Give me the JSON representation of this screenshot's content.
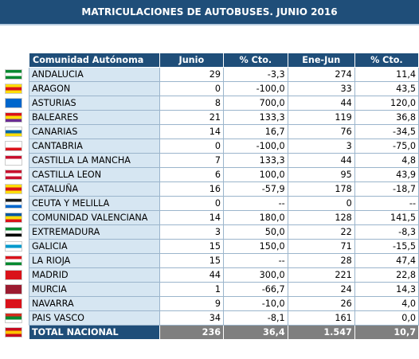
{
  "title": "MATRICULACIONES DE AUTOBUSES. JUNIO 2016",
  "headers": [
    "Comunidad Autónoma",
    "Junio",
    "% Cto.",
    "Ene-Jun",
    "% Cto."
  ],
  "rows": [
    {
      "name": "ANDALUCIA",
      "junio": "29",
      "cto1": "-3,3",
      "enejun": "274",
      "cto2": "11,4",
      "flag_colors": [
        "#078930",
        "#ffffff",
        "#078930"
      ]
    },
    {
      "name": "ARAGON",
      "junio": "0",
      "cto1": "-100,0",
      "enejun": "33",
      "cto2": "43,5",
      "flag_colors": [
        "#fcdd09",
        "#da121a",
        "#fcdd09"
      ]
    },
    {
      "name": "ASTURIAS",
      "junio": "8",
      "cto1": "700,0",
      "enejun": "44",
      "cto2": "120,0",
      "flag_colors": [
        "#0066cc",
        "#0066cc",
        "#0066cc"
      ]
    },
    {
      "name": "BALEARES",
      "junio": "21",
      "cto1": "133,3",
      "enejun": "119",
      "cto2": "36,8",
      "flag_colors": [
        "#da121a",
        "#fcdd09",
        "#6a2c91"
      ]
    },
    {
      "name": "CANARIAS",
      "junio": "14",
      "cto1": "16,7",
      "enejun": "76",
      "cto2": "-34,5",
      "flag_colors": [
        "#ffffff",
        "#0768a9",
        "#fcdd09"
      ]
    },
    {
      "name": "CANTABRIA",
      "junio": "0",
      "cto1": "-100,0",
      "enejun": "3",
      "cto2": "-75,0",
      "flag_colors": [
        "#ffffff",
        "#ffffff",
        "#da121a"
      ]
    },
    {
      "name": "CASTILLA LA MANCHA",
      "junio": "7",
      "cto1": "133,3",
      "enejun": "44",
      "cto2": "4,8",
      "flag_colors": [
        "#c8102e",
        "#ffffff",
        "#ffffff"
      ]
    },
    {
      "name": "CASTILLA LEON",
      "junio": "6",
      "cto1": "100,0",
      "enejun": "95",
      "cto2": "43,9",
      "flag_colors": [
        "#c8102e",
        "#ffffff",
        "#c8102e"
      ]
    },
    {
      "name": "CATALUÑA",
      "junio": "16",
      "cto1": "-57,9",
      "enejun": "178",
      "cto2": "-18,7",
      "flag_colors": [
        "#fcdd09",
        "#da121a",
        "#fcdd09"
      ]
    },
    {
      "name": "CEUTA Y MELILLA",
      "junio": "0",
      "cto1": "--",
      "enejun": "0",
      "cto2": "--",
      "flag_colors": [
        "#1a1a1a",
        "#ffffff",
        "#0066cc"
      ]
    },
    {
      "name": "COMUNIDAD VALENCIANA",
      "junio": "14",
      "cto1": "180,0",
      "enejun": "128",
      "cto2": "141,5",
      "flag_colors": [
        "#0057a4",
        "#fcdd09",
        "#da121a"
      ]
    },
    {
      "name": "EXTREMADURA",
      "junio": "3",
      "cto1": "50,0",
      "enejun": "22",
      "cto2": "-8,3",
      "flag_colors": [
        "#078930",
        "#ffffff",
        "#000000"
      ]
    },
    {
      "name": "GALICIA",
      "junio": "15",
      "cto1": "150,0",
      "enejun": "71",
      "cto2": "-15,5",
      "flag_colors": [
        "#ffffff",
        "#0099cc",
        "#ffffff"
      ]
    },
    {
      "name": "LA RIOJA",
      "junio": "15",
      "cto1": "--",
      "enejun": "28",
      "cto2": "47,4",
      "flag_colors": [
        "#da121a",
        "#ffffff",
        "#078930"
      ]
    },
    {
      "name": "MADRID",
      "junio": "44",
      "cto1": "300,0",
      "enejun": "221",
      "cto2": "22,8",
      "flag_colors": [
        "#da121a",
        "#da121a",
        "#da121a"
      ]
    },
    {
      "name": "MURCIA",
      "junio": "1",
      "cto1": "-66,7",
      "enejun": "24",
      "cto2": "14,3",
      "flag_colors": [
        "#9b1b30",
        "#9b1b30",
        "#9b1b30"
      ]
    },
    {
      "name": "NAVARRA",
      "junio": "9",
      "cto1": "-10,0",
      "enejun": "26",
      "cto2": "4,0",
      "flag_colors": [
        "#da121a",
        "#da121a",
        "#da121a"
      ]
    },
    {
      "name": "PAIS VASCO",
      "junio": "34",
      "cto1": "-8,1",
      "enejun": "161",
      "cto2": "0,0",
      "flag_colors": [
        "#d52b1e",
        "#078930",
        "#ffffff"
      ]
    },
    {
      "name": "TOTAL NACIONAL",
      "junio": "236",
      "cto1": "36,4",
      "enejun": "1.547",
      "cto2": "10,7",
      "flag_colors": [
        "#c60b1e",
        "#ffc400",
        "#c60b1e"
      ]
    }
  ],
  "colors": {
    "header": "#1f4e79",
    "name_cell": "#d6e6f2",
    "total_values": "#7f7f7f"
  }
}
